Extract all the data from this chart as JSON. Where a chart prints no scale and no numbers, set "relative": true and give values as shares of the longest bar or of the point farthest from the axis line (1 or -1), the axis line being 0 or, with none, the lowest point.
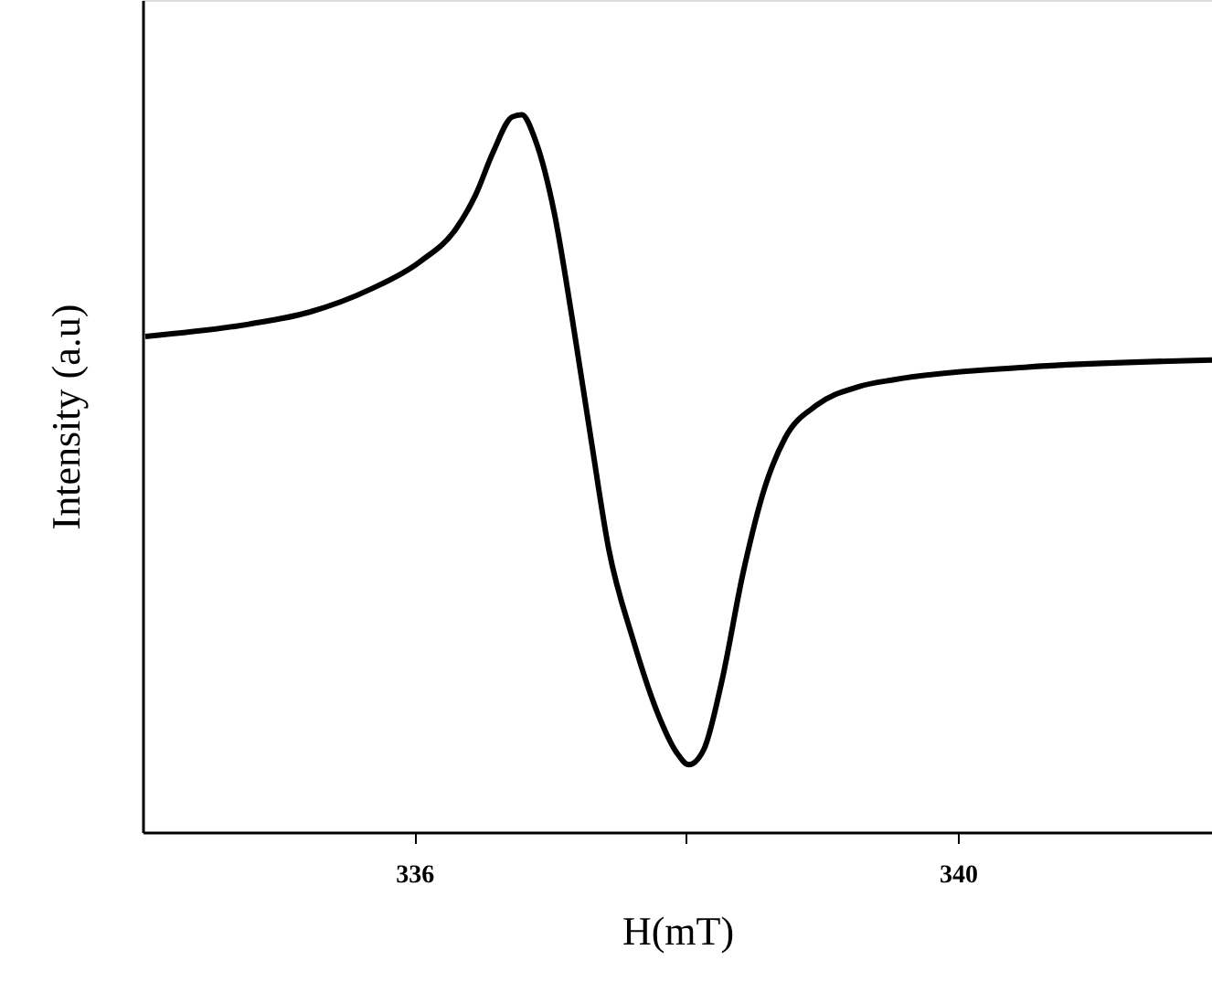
{
  "chart_data": {
    "type": "line",
    "xlabel": "H(mT)",
    "ylabel": "Intensity (a.u)",
    "relative": true,
    "xlim": [
      334,
      341.87
    ],
    "xticks": [
      336,
      {
        "value": 338,
        "label": null
      },
      340
    ],
    "x": [
      334.02,
      334.78,
      335.23,
      335.68,
      336.04,
      336.31,
      336.45,
      336.58,
      336.72,
      336.79,
      336.89,
      337.03,
      337.16,
      337.3,
      337.43,
      337.61,
      337.79,
      337.93,
      338.02,
      338.13,
      338.26,
      338.42,
      338.58,
      338.73,
      338.96,
      339.27,
      339.54,
      340.49,
      341.87
    ],
    "series": [
      {
        "color": "#000000",
        "values": [
          0.691,
          0.708,
          0.725,
          0.757,
          0.795,
          0.842,
          0.888,
          0.948,
          0.997,
          1.0,
          0.965,
          0.863,
          0.718,
          0.548,
          0.395,
          0.268,
          0.166,
          0.111,
          0.094,
          0.115,
          0.208,
          0.362,
          0.481,
          0.55,
          0.595,
          0.621,
          0.631,
          0.648,
          0.658
        ]
      }
    ],
    "grid": false,
    "marker": "none",
    "line_style": "solid"
  }
}
